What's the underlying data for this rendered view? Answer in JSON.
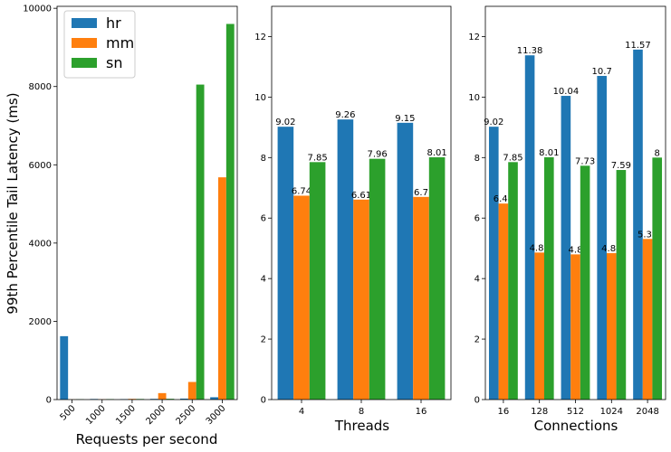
{
  "chart_data": [
    {
      "type": "bar",
      "xlabel": "Requests per second",
      "ylabel": "99th Percentile Tail Latency (ms)",
      "categories": [
        "500",
        "1000",
        "1500",
        "2000",
        "2500",
        "3000"
      ],
      "yticks": [
        0,
        2000,
        4000,
        6000,
        8000,
        10000
      ],
      "ylim": [
        0,
        10050
      ],
      "xtick_rotation": 45,
      "legend": {
        "placement": "top-left"
      },
      "series": [
        {
          "name": "hr",
          "color": "#1f77b4",
          "values": [
            1620,
            15,
            12,
            18,
            25,
            60
          ]
        },
        {
          "name": "mm",
          "color": "#ff7f0e",
          "values": [
            5,
            8,
            18,
            165,
            450,
            5680
          ]
        },
        {
          "name": "sn",
          "color": "#2ca02c",
          "values": [
            8,
            12,
            15,
            20,
            8050,
            9600
          ]
        }
      ],
      "data_labels": false
    },
    {
      "type": "bar",
      "xlabel": "Threads",
      "ylabel": "",
      "categories": [
        "4",
        "8",
        "16"
      ],
      "yticks": [
        0,
        2,
        4,
        6,
        8,
        10,
        12
      ],
      "ylim": [
        0,
        13
      ],
      "series": [
        {
          "name": "hr",
          "color": "#1f77b4",
          "values": [
            9.02,
            9.26,
            9.15
          ],
          "labels": [
            "9.02",
            "9.26",
            "9.15"
          ]
        },
        {
          "name": "mm",
          "color": "#ff7f0e",
          "values": [
            6.74,
            6.61,
            6.7
          ],
          "labels": [
            "6.74",
            "6.61",
            "6.7"
          ]
        },
        {
          "name": "sn",
          "color": "#2ca02c",
          "values": [
            7.85,
            7.96,
            8.01
          ],
          "labels": [
            "7.85",
            "7.96",
            "8.01"
          ]
        }
      ],
      "data_labels": true
    },
    {
      "type": "bar",
      "xlabel": "Connections",
      "ylabel": "",
      "categories": [
        "16",
        "128",
        "512",
        "1024",
        "2048"
      ],
      "yticks": [
        0,
        2,
        4,
        6,
        8,
        10,
        12
      ],
      "ylim": [
        0,
        13
      ],
      "series": [
        {
          "name": "hr",
          "color": "#1f77b4",
          "values": [
            9.02,
            11.38,
            10.04,
            10.7,
            11.57
          ],
          "labels": [
            "9.02",
            "11.38",
            "10.04",
            "10.7",
            "11.57"
          ]
        },
        {
          "name": "mm",
          "color": "#ff7f0e",
          "values": [
            6.48,
            4.86,
            4.8,
            4.84,
            5.31
          ],
          "labels": [
            "6.48",
            "4.86",
            "4.8",
            "4.84",
            "5.31"
          ]
        },
        {
          "name": "sn",
          "color": "#2ca02c",
          "values": [
            7.85,
            8.01,
            7.73,
            7.59,
            8.0
          ],
          "labels": [
            "7.85",
            "8.01",
            "7.73",
            "7.59",
            "8"
          ]
        }
      ],
      "data_labels": true
    }
  ]
}
